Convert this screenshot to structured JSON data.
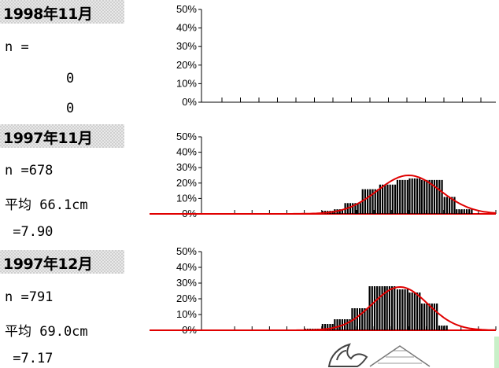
{
  "panels": [
    {
      "header": "1998年11月",
      "n_label": "n =",
      "n_value": "0",
      "extra_value": "0"
    },
    {
      "header": "1997年11月",
      "n_label": "n =678",
      "mean_label": "平均 66.1cm",
      "sd_label": " =7.90"
    },
    {
      "header": "1997年12月",
      "n_label": "n =791",
      "mean_label": "平均 69.0cm",
      "sd_label": " =7.17"
    }
  ],
  "colors": {
    "bar": "#000000",
    "curve": "#e00000",
    "axis": "#000000"
  },
  "chart_data": [
    {
      "type": "bar",
      "title": "1998年11月",
      "y_ticks": [
        "50%",
        "40%",
        "30%",
        "20%",
        "10%",
        "0%"
      ],
      "ylim": [
        0,
        50
      ],
      "bins": 16,
      "values": [],
      "normal_curve": null
    },
    {
      "type": "bar",
      "title": "1997年11月",
      "y_ticks": [
        "50%",
        "40%",
        "30%",
        "20%",
        "10%",
        "0%"
      ],
      "ylim": [
        0,
        50
      ],
      "x_range": [
        0,
        16
      ],
      "bars": [
        {
          "x0": 6.0,
          "x1": 6.7,
          "v": 2
        },
        {
          "x0": 6.7,
          "x1": 7.3,
          "v": 3
        },
        {
          "x0": 7.3,
          "x1": 8.3,
          "v": 7
        },
        {
          "x0": 8.3,
          "x1": 9.3,
          "v": 16
        },
        {
          "x0": 9.3,
          "x1": 10.3,
          "v": 19
        },
        {
          "x0": 10.3,
          "x1": 11.0,
          "v": 22
        },
        {
          "x0": 11.0,
          "x1": 11.7,
          "v": 23
        },
        {
          "x0": 11.7,
          "x1": 13.0,
          "v": 22
        },
        {
          "x0": 13.0,
          "x1": 13.7,
          "v": 11
        },
        {
          "x0": 13.7,
          "x1": 14.7,
          "v": 3
        }
      ],
      "normal_curve": {
        "mean": 11.0,
        "sd": 1.8,
        "peak": 25
      }
    },
    {
      "type": "bar",
      "title": "1997年12月",
      "y_ticks": [
        "50%",
        "40%",
        "30%",
        "20%",
        "10%",
        "0%"
      ],
      "ylim": [
        0,
        50
      ],
      "x_range": [
        0,
        16
      ],
      "bars": [
        {
          "x0": 3.0,
          "x1": 5.0,
          "v": 0.5
        },
        {
          "x0": 5.0,
          "x1": 6.0,
          "v": 1.0
        },
        {
          "x0": 6.0,
          "x1": 6.7,
          "v": 4
        },
        {
          "x0": 6.7,
          "x1": 7.7,
          "v": 7
        },
        {
          "x0": 7.7,
          "x1": 8.7,
          "v": 14
        },
        {
          "x0": 8.7,
          "x1": 9.7,
          "v": 28
        },
        {
          "x0": 9.7,
          "x1": 10.3,
          "v": 28
        },
        {
          "x0": 10.3,
          "x1": 11.0,
          "v": 26
        },
        {
          "x0": 11.0,
          "x1": 11.7,
          "v": 24
        },
        {
          "x0": 11.7,
          "x1": 12.7,
          "v": 17
        },
        {
          "x0": 12.7,
          "x1": 13.3,
          "v": 3
        }
      ],
      "normal_curve": {
        "mean": 10.5,
        "sd": 1.6,
        "peak": 27.5
      }
    }
  ]
}
